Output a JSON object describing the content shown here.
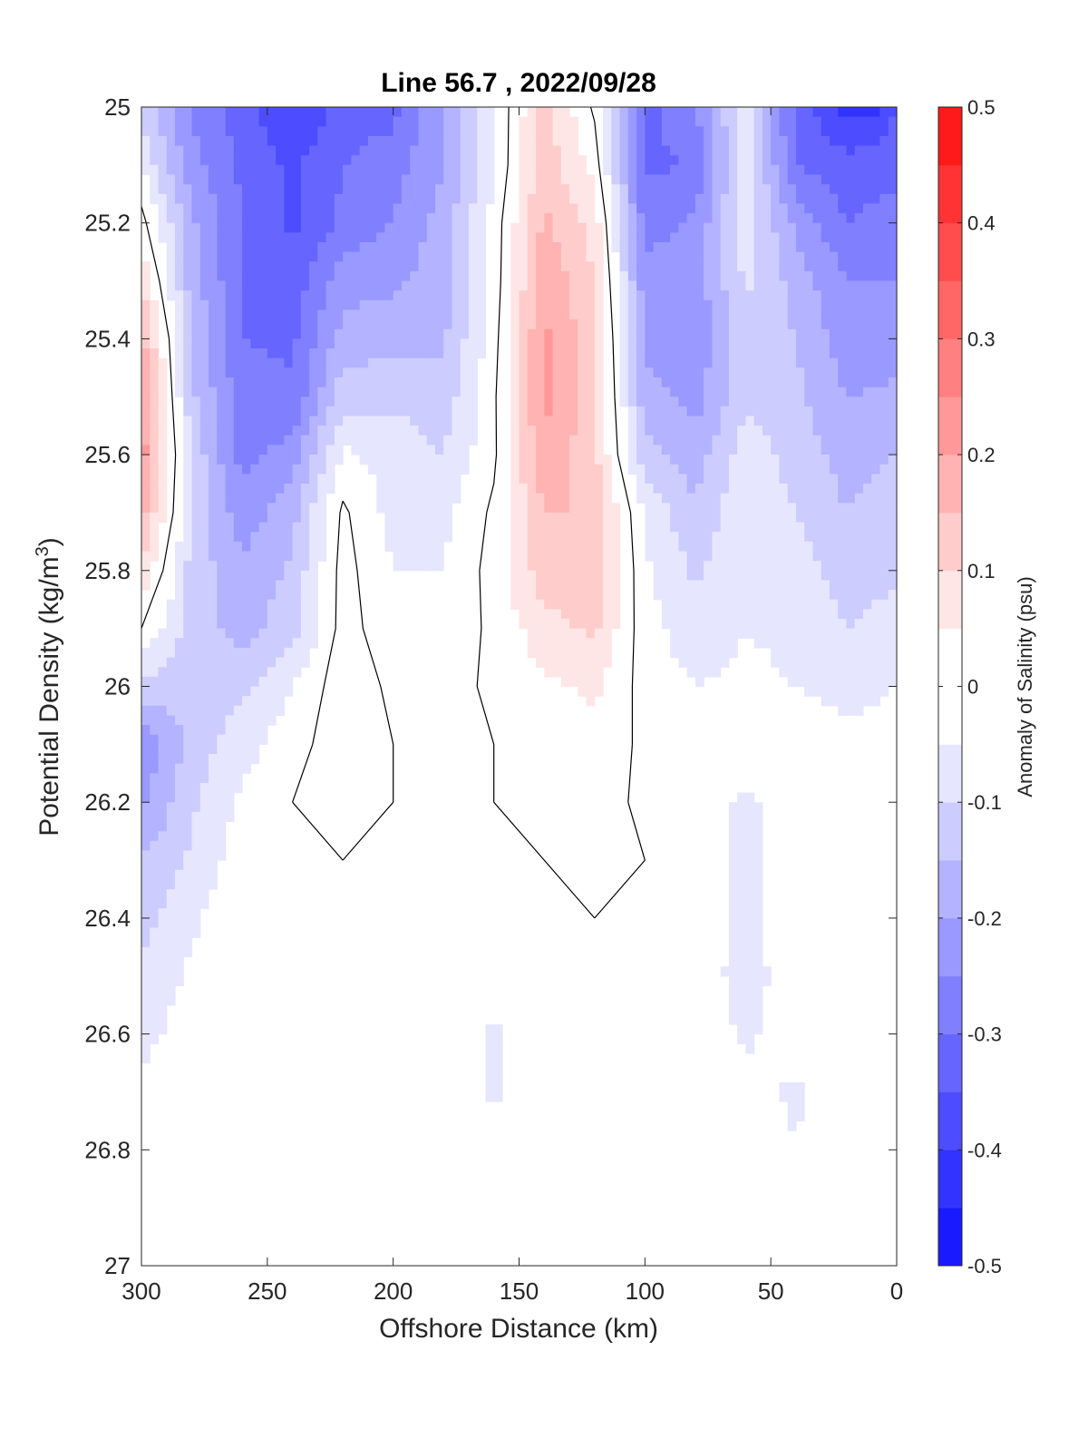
{
  "chart_data": {
    "type": "heatmap",
    "subtype": "filled-contour section",
    "title": "Line 56.7 , 2022/09/28",
    "xlabel": "Offshore Distance (km)",
    "ylabel_main": "Potential Density (kg/m",
    "ylabel_sup": "3",
    "ylabel_close": ")",
    "colorbar_label": "Anomaly of Salinity (psu)",
    "xlim": [
      300,
      0
    ],
    "x_reversed": true,
    "ylim": [
      25,
      27
    ],
    "y_reversed": true,
    "xticks": [
      300,
      250,
      200,
      150,
      100,
      50,
      0
    ],
    "yticks": [
      25,
      25.2,
      25.4,
      25.6,
      25.8,
      26,
      26.2,
      26.4,
      26.6,
      26.8,
      27
    ],
    "colorbar": {
      "range": [
        -0.5,
        0.5
      ],
      "ticks": [
        -0.5,
        -0.4,
        -0.3,
        -0.2,
        -0.1,
        0,
        0.1,
        0.2,
        0.3,
        0.4,
        0.5
      ],
      "tick_labels": [
        "-0.5",
        "-0.4",
        "-0.3",
        "-0.2",
        "-0.1",
        "0",
        "0.1",
        "0.2",
        "0.3",
        "0.4",
        "0.5"
      ],
      "level_step": 0.05,
      "negative_color": "#0000ff",
      "positive_color": "#ff0000",
      "neutral_color": "#ffffff"
    },
    "zero_contour": "black line",
    "columns_x": [
      300,
      280,
      260,
      240,
      220,
      200,
      180,
      160,
      140,
      120,
      100,
      80,
      60,
      40,
      20,
      0
    ],
    "rows_y": [
      25,
      25.1,
      25.2,
      25.3,
      25.4,
      25.5,
      25.6,
      25.7,
      25.8,
      25.9,
      26,
      26.1,
      26.2,
      26.3,
      26.4,
      26.5,
      26.6,
      26.7,
      26.8,
      26.9,
      27
    ],
    "values": [
      [
        -0.12,
        -0.26,
        -0.33,
        -0.41,
        -0.33,
        -0.32,
        -0.2,
        -0.05,
        0.12,
        -0.01,
        -0.32,
        -0.25,
        -0.07,
        -0.32,
        -0.42,
        null
      ],
      [
        -0.05,
        -0.23,
        -0.31,
        -0.36,
        -0.3,
        -0.27,
        -0.2,
        -0.05,
        0.13,
        0.03,
        -0.31,
        -0.3,
        -0.06,
        -0.3,
        -0.33,
        -0.33
      ],
      [
        0.02,
        -0.19,
        -0.3,
        -0.36,
        -0.29,
        -0.25,
        -0.18,
        -0.03,
        0.16,
        0.08,
        -0.27,
        -0.24,
        -0.07,
        -0.21,
        -0.3,
        -0.27
      ],
      [
        0.1,
        -0.18,
        -0.3,
        -0.33,
        -0.22,
        -0.21,
        -0.17,
        -0.03,
        0.19,
        0.1,
        -0.23,
        -0.23,
        -0.09,
        -0.17,
        -0.25,
        -0.25
      ],
      [
        0.17,
        -0.14,
        -0.3,
        -0.31,
        -0.18,
        -0.17,
        -0.16,
        -0.02,
        0.21,
        0.12,
        -0.21,
        -0.24,
        -0.11,
        -0.15,
        -0.23,
        -0.22
      ],
      [
        0.22,
        -0.14,
        -0.28,
        -0.29,
        -0.12,
        -0.11,
        -0.13,
        -0.01,
        0.22,
        0.12,
        -0.18,
        -0.22,
        -0.11,
        -0.14,
        -0.2,
        -0.19
      ],
      [
        0.23,
        -0.11,
        -0.27,
        -0.23,
        -0.04,
        -0.07,
        -0.1,
        -0.01,
        0.19,
        0.11,
        -0.13,
        -0.18,
        -0.07,
        -0.12,
        -0.17,
        -0.15
      ],
      [
        0.17,
        -0.1,
        -0.23,
        -0.17,
        0.01,
        -0.07,
        -0.06,
        0.01,
        0.15,
        0.15,
        -0.06,
        -0.14,
        -0.06,
        -0.1,
        -0.15,
        -0.12
      ],
      [
        0.09,
        -0.12,
        -0.19,
        -0.14,
        0.02,
        -0.05,
        -0.05,
        0.02,
        0.13,
        0.14,
        -0.04,
        -0.11,
        -0.05,
        -0.08,
        -0.12,
        -0.11
      ],
      [
        0.0,
        -0.12,
        -0.17,
        -0.12,
        0.02,
        -0.03,
        -0.03,
        0.01,
        0.08,
        0.11,
        -0.03,
        -0.08,
        -0.05,
        -0.06,
        -0.1,
        -0.08
      ],
      [
        -0.11,
        -0.14,
        -0.11,
        -0.05,
        0.03,
        -0.01,
        -0.02,
        0.01,
        0.04,
        0.06,
        -0.02,
        -0.05,
        -0.04,
        -0.05,
        -0.06,
        -0.05
      ],
      [
        -0.24,
        -0.13,
        -0.07,
        -0.02,
        0.03,
        0.0,
        -0.01,
        0.0,
        0.02,
        0.03,
        -0.01,
        -0.03,
        -0.03,
        -0.03,
        -0.04,
        -0.04
      ],
      [
        -0.21,
        -0.11,
        -0.04,
        0.0,
        0.01,
        0.0,
        0.0,
        0.0,
        0.01,
        0.02,
        -0.01,
        -0.02,
        -0.06,
        -0.02,
        -0.03,
        -0.03
      ],
      [
        -0.15,
        -0.09,
        -0.02,
        0.0,
        0.0,
        0.0,
        0.0,
        0.0,
        0.0,
        0.01,
        0.0,
        -0.02,
        -0.07,
        -0.02,
        -0.02,
        -0.02
      ],
      [
        -0.12,
        -0.06,
        -0.01,
        0.0,
        0.0,
        0.0,
        0.0,
        0.0,
        0.0,
        0.0,
        0.0,
        -0.01,
        -0.07,
        -0.01,
        -0.01,
        -0.01
      ],
      [
        -0.09,
        -0.04,
        0.0,
        0.0,
        0.0,
        0.0,
        0.0,
        0.0,
        0.0,
        0.0,
        0.0,
        -0.01,
        -0.08,
        -0.01,
        -0.01,
        -0.01
      ],
      [
        -0.07,
        -0.02,
        0.0,
        0.0,
        0.0,
        0.0,
        0.0,
        -0.06,
        0.0,
        0.0,
        0.0,
        -0.01,
        -0.06,
        -0.02,
        0.0,
        0.0
      ],
      [
        -0.03,
        -0.01,
        0.0,
        0.0,
        0.0,
        0.0,
        0.0,
        -0.06,
        0.0,
        0.0,
        0.0,
        0.0,
        -0.03,
        -0.06,
        0.0,
        0.0
      ],
      [
        -0.01,
        0.0,
        0.0,
        0.0,
        0.0,
        0.0,
        0.0,
        -0.02,
        0.0,
        0.0,
        0.0,
        0.0,
        -0.01,
        -0.05,
        0.0,
        0.0
      ],
      [
        0.0,
        0.0,
        0.0,
        0.0,
        0.0,
        0.0,
        0.0,
        0.0,
        0.0,
        0.0,
        0.0,
        0.0,
        -0.01,
        -0.02,
        0.0,
        0.0
      ],
      [
        0.0,
        0.0,
        0.0,
        0.0,
        0.0,
        0.0,
        0.0,
        0.0,
        0.0,
        0.0,
        0.0,
        0.0,
        0.0,
        0.0,
        0.0,
        0.0
      ]
    ]
  }
}
